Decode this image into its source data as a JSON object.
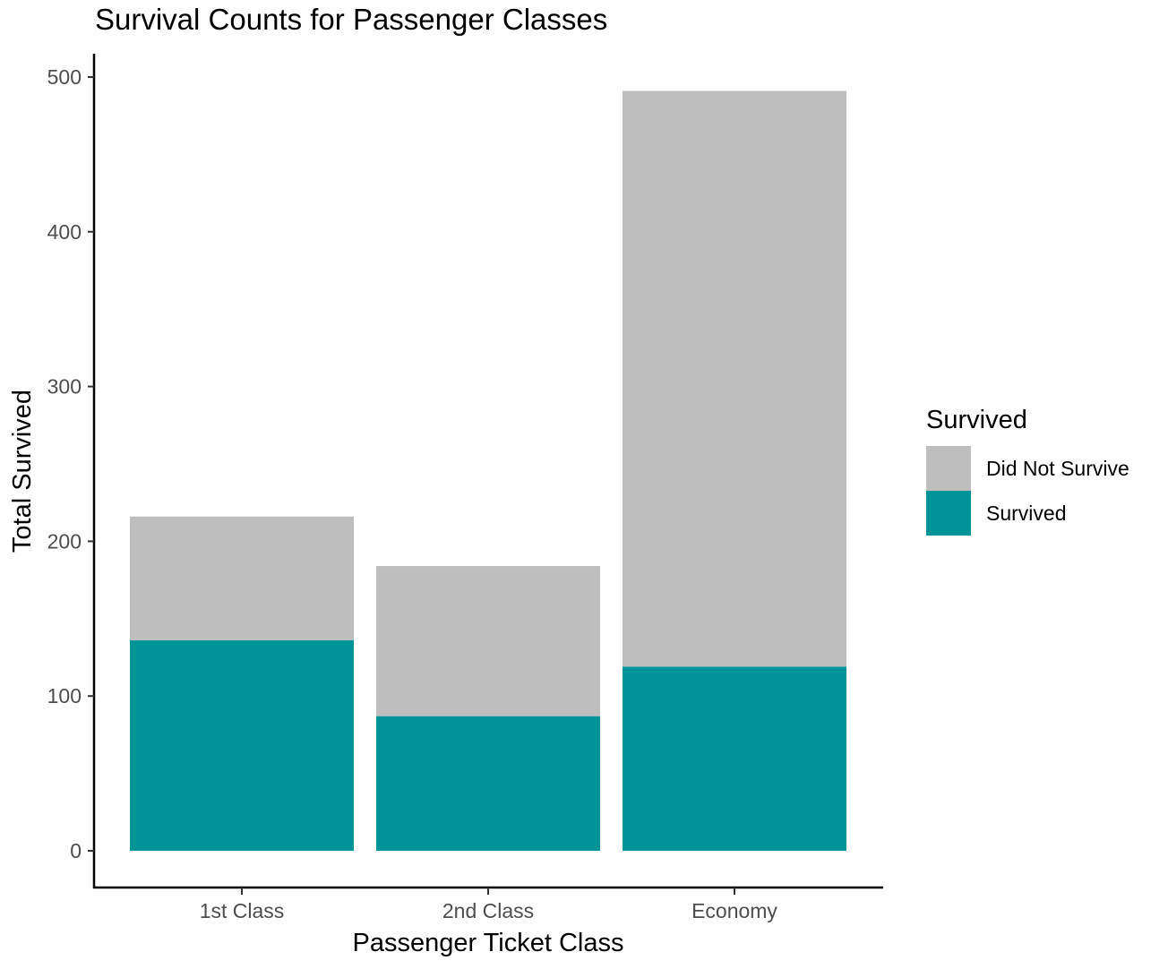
{
  "chart_data": {
    "type": "bar",
    "stacked": true,
    "title": "Survival Counts for Passenger Classes",
    "xlabel": "Passenger Ticket Class",
    "ylabel": "Total Survived",
    "categories": [
      "1st Class",
      "2nd Class",
      "Economy"
    ],
    "series": [
      {
        "name": "Survived",
        "values": [
          136,
          87,
          119
        ],
        "color": "#009499"
      },
      {
        "name": "Did Not Survive",
        "values": [
          80,
          97,
          372
        ],
        "color": "#bebebe"
      }
    ],
    "ylim": [
      0,
      500
    ],
    "yticks": [
      0,
      100,
      200,
      300,
      400,
      500
    ],
    "grid": false,
    "legend": {
      "title": "Survived",
      "placement": "right",
      "entries": [
        {
          "label": "Did Not Survive",
          "color": "#bebebe"
        },
        {
          "label": "Survived",
          "color": "#009499"
        }
      ]
    }
  }
}
